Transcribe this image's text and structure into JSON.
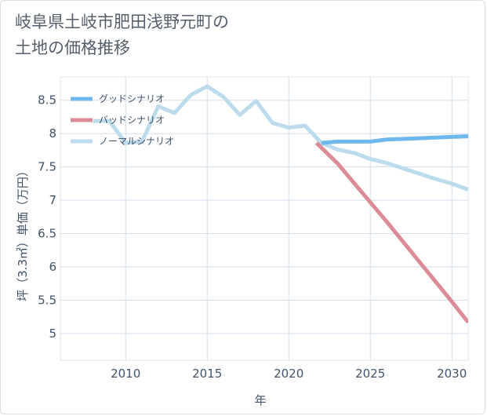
{
  "page": {
    "title_line1": "岐阜県土岐市肥田浅野元町の",
    "title_line2": "土地の価格推移"
  },
  "chart_data": {
    "type": "line",
    "title": "岐阜県土岐市肥田浅野元町の土地の価格推移",
    "xlabel": "年",
    "ylabel": "坪（3.3㎡）単価（万円）",
    "xlim": [
      2006,
      2031
    ],
    "ylim": [
      4.6,
      8.85
    ],
    "x_ticks": [
      2010,
      2015,
      2020,
      2025,
      2030
    ],
    "y_ticks": [
      5,
      5.5,
      6,
      6.5,
      7,
      7.5,
      8,
      8.5
    ],
    "y_tick_labels": [
      "5",
      "5.5",
      "6",
      "6.5",
      "7",
      "7.5",
      "8",
      "8.5"
    ],
    "grid": true,
    "legend_position": "top-left",
    "series": [
      {
        "name": "グッドシナリオ",
        "color": "#6fb8ee",
        "x": [
          2022,
          2023,
          2024,
          2025,
          2026,
          2027,
          2028,
          2029,
          2030,
          2031
        ],
        "y": [
          7.86,
          7.88,
          7.88,
          7.88,
          7.91,
          7.92,
          7.93,
          7.94,
          7.95,
          7.96
        ]
      },
      {
        "name": "バッドシナリオ",
        "color": "#dc8c96",
        "x": [
          2021.7,
          2023,
          2024,
          2025,
          2026,
          2027,
          2028,
          2029,
          2030,
          2031
        ],
        "y": [
          7.86,
          7.55,
          7.26,
          6.97,
          6.68,
          6.38,
          6.08,
          5.78,
          5.48,
          5.17
        ]
      },
      {
        "name": "ノーマルシナリオ",
        "color": "#bcdced",
        "x": [
          2008,
          2009,
          2010,
          2011,
          2012,
          2013,
          2014,
          2015,
          2016,
          2017,
          2018,
          2019,
          2020,
          2021,
          2022,
          2023,
          2024,
          2025,
          2026,
          2027,
          2028,
          2029,
          2030,
          2031
        ],
        "y": [
          8.19,
          8.19,
          7.86,
          7.88,
          8.41,
          8.31,
          8.58,
          8.71,
          8.55,
          8.28,
          8.49,
          8.16,
          8.09,
          8.12,
          7.86,
          7.76,
          7.71,
          7.62,
          7.56,
          7.48,
          7.4,
          7.32,
          7.25,
          7.16
        ]
      }
    ]
  }
}
